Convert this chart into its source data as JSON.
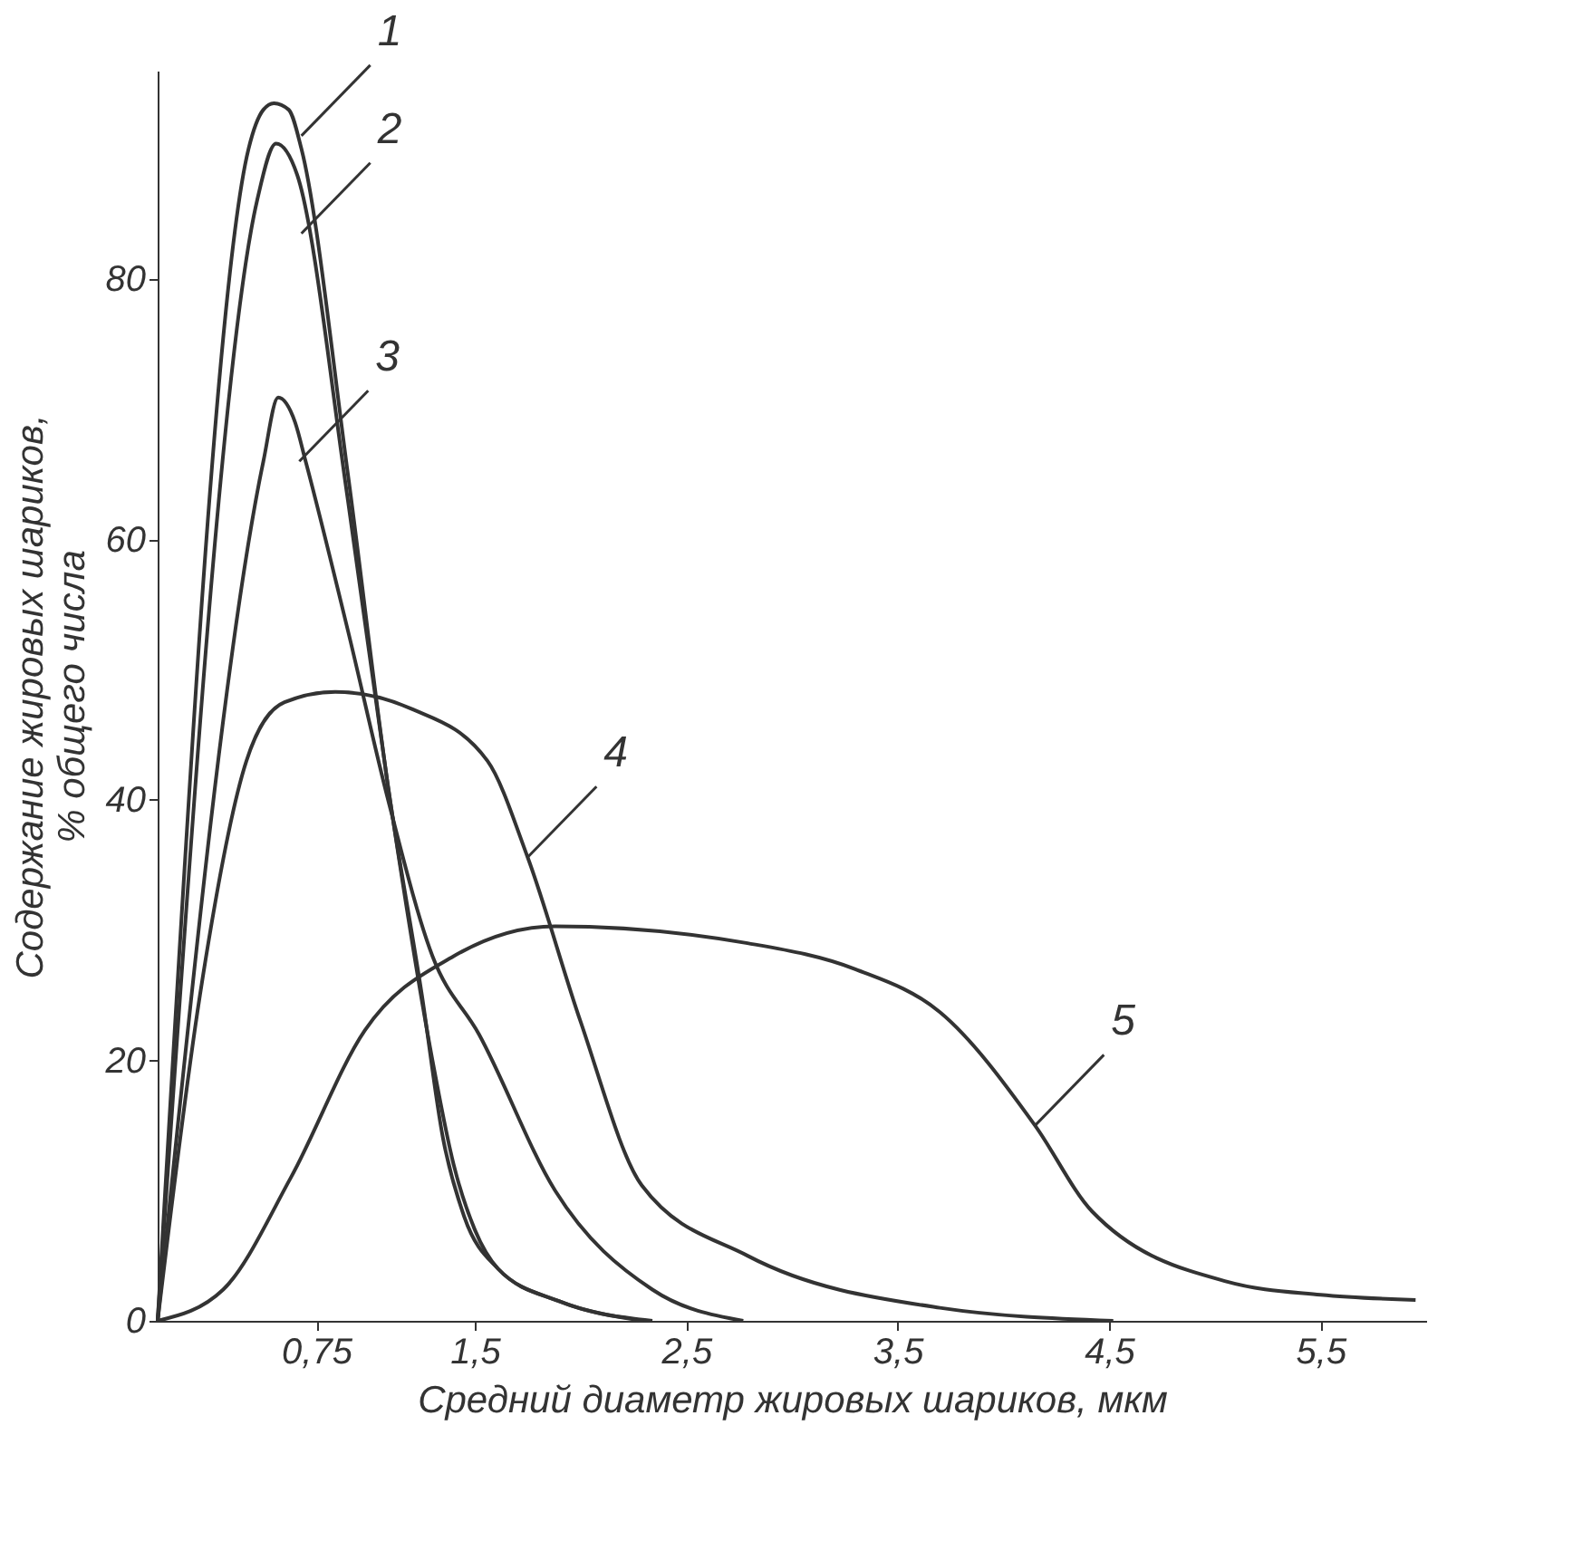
{
  "chart_data": {
    "type": "line",
    "xlabel": "Средний диаметр жировых шариков, мкм",
    "ylabel": "Содержание жировых шариков,\n% общего числа",
    "xlim": [
      0,
      6
    ],
    "ylim": [
      0,
      96
    ],
    "xticks": [
      {
        "value": 0.75,
        "label": "0,75"
      },
      {
        "value": 1.5,
        "label": "1,5"
      },
      {
        "value": 2.5,
        "label": "2,5"
      },
      {
        "value": 3.5,
        "label": "3,5"
      },
      {
        "value": 4.5,
        "label": "4,5"
      },
      {
        "value": 5.5,
        "label": "5,5"
      }
    ],
    "yticks": [
      0,
      20,
      40,
      60,
      80
    ],
    "grid": false,
    "marker": "none",
    "line_style": "solid",
    "series": [
      {
        "color": "#333333",
        "x": [
          0,
          0.43,
          0.5,
          0.55,
          0.62,
          0.68,
          0.9,
          1.09,
          1.25,
          1.35,
          1.45,
          1.61,
          1.9,
          2.34
        ],
        "values": [
          0,
          90,
          93,
          93.5,
          93,
          90,
          65,
          41,
          25,
          14,
          8,
          4,
          1.5,
          0
        ]
      },
      {
        "color": "#333333",
        "x": [
          0,
          0.47,
          0.56,
          0.66,
          0.9,
          1.09,
          1.3,
          1.4,
          1.5,
          1.61,
          1.9,
          2.3
        ],
        "values": [
          0,
          86,
          90.4,
          88,
          63,
          41,
          20,
          12,
          7,
          4,
          1.5,
          0
        ]
      },
      {
        "color": "#333333",
        "x": [
          0,
          0.5,
          0.57,
          0.65,
          0.7,
          0.9,
          1.09,
          1.3,
          1.52,
          1.88,
          2.34,
          2.77
        ],
        "values": [
          0,
          66,
          70.9,
          69,
          66,
          53,
          40,
          28,
          22,
          10,
          2.4,
          0
        ]
      },
      {
        "color": "#333333",
        "x": [
          0,
          0.2,
          0.42,
          0.6,
          0.84,
          1.2,
          1.56,
          1.75,
          2.0,
          2.29,
          2.79,
          3.7,
          4.52
        ],
        "values": [
          0,
          25,
          43,
          47.5,
          48.3,
          47,
          43,
          35.6,
          23,
          10.4,
          5,
          1,
          0
        ]
      },
      {
        "color": "#333333",
        "x": [
          0,
          0.31,
          0.63,
          0.98,
          1.4,
          1.88,
          2.79,
          3.3,
          3.7,
          4.15,
          4.42,
          5.06,
          5.5,
          5.95
        ],
        "values": [
          0,
          2.4,
          11,
          22.3,
          28,
          30.3,
          29,
          27,
          23.7,
          15,
          8.4,
          3,
          2,
          1.6
        ]
      }
    ],
    "annotations": [
      {
        "text": "1",
        "x": 0.68,
        "y": 91
      },
      {
        "text": "2",
        "x": 0.68,
        "y": 83.5
      },
      {
        "text": "3",
        "x": 0.67,
        "y": 66
      },
      {
        "text": "4",
        "x": 1.75,
        "y": 35.6
      },
      {
        "text": "5",
        "x": 4.15,
        "y": 15
      }
    ]
  }
}
